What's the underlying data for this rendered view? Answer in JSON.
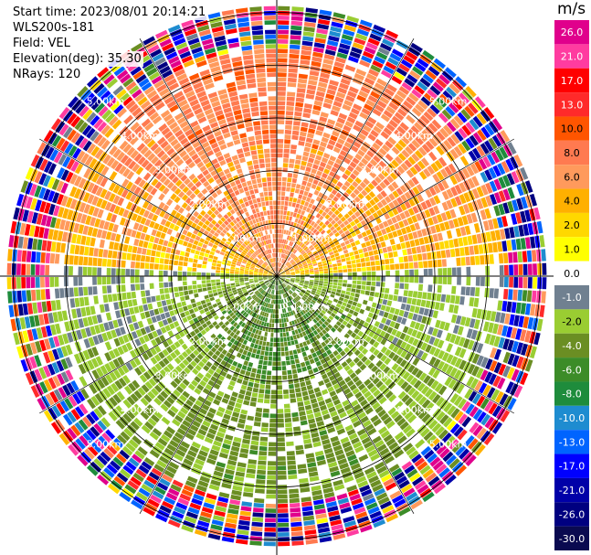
{
  "header": {
    "start_time": "Start time: 2023/08/01 20:14:21",
    "instrument": "WLS200s-181",
    "field": "Field: VEL",
    "elevation": "Elevation(deg): 35.30",
    "nrays": "NRays: 120"
  },
  "chart_data": {
    "type": "ppi-radar",
    "title": "WLS200s-181 VEL",
    "nrays": 120,
    "elevation_deg": 35.3,
    "range_rings_km": [
      1.0,
      2.0,
      3.0,
      4.0,
      5.0
    ],
    "range_labels": [
      "1.00km",
      "2.00km",
      "3.00km",
      "4.00km",
      "5.00km"
    ],
    "colorbar": {
      "unit": "m/s",
      "ticks": [
        "26.0",
        "21.0",
        "17.0",
        "13.0",
        "10.0",
        "8.0",
        "6.0",
        "4.0",
        "2.0",
        "1.0",
        "0.0",
        "-1.0",
        "-2.0",
        "-4.0",
        "-6.0",
        "-8.0",
        "-10.0",
        "-13.0",
        "-17.0",
        "-21.0",
        "-26.0",
        "-30.0"
      ],
      "colors": [
        "#e0008c",
        "#ff3ca0",
        "#ff0000",
        "#ff2a2a",
        "#ff5500",
        "#ff7a50",
        "#ff9a5c",
        "#ffb000",
        "#ffd800",
        "#ffff00",
        "#ffffff",
        "#708090",
        "#9acd32",
        "#6b8e23",
        "#3c8c28",
        "#1e8c3c",
        "#1e8cd0",
        "#0064ff",
        "#0000ff",
        "#0000a8",
        "#000080",
        "#0a0a50"
      ]
    }
  }
}
